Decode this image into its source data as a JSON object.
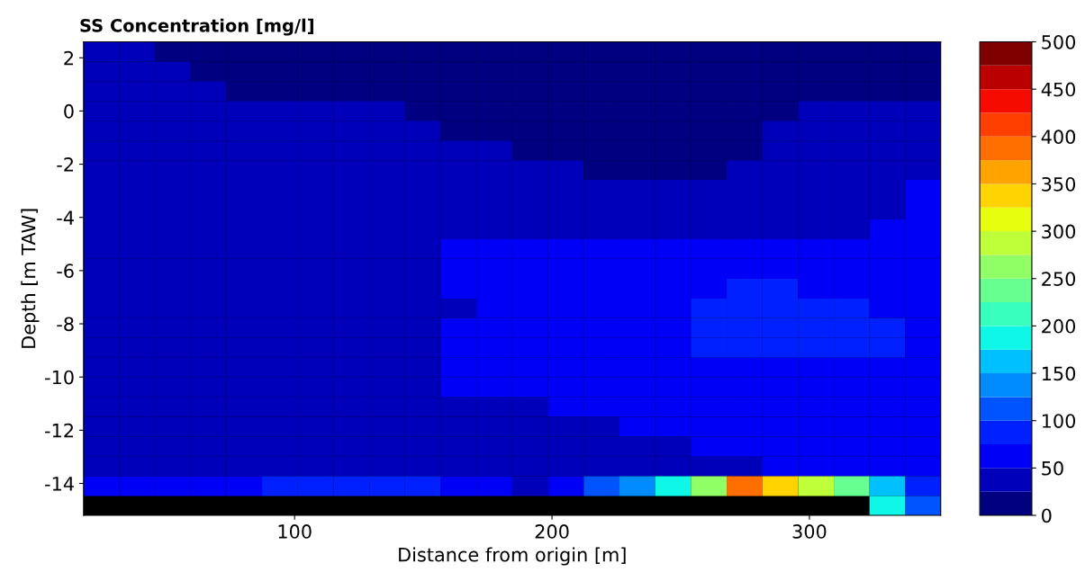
{
  "chart_data": {
    "type": "heatmap",
    "title": "SS Concentration [mg/l]",
    "xlabel": "Distance from origin [m]",
    "ylabel": "Depth [m TAW]",
    "x": [
      24.9,
      38.8,
      52.7,
      66.6,
      80.4,
      94.3,
      108.2,
      122.1,
      136.0,
      149.8,
      163.7,
      177.6,
      191.5,
      205.4,
      219.3,
      233.1,
      247.0,
      260.9,
      274.8,
      288.7,
      302.6,
      316.4,
      330.3,
      344.2
    ],
    "y": [
      2.23,
      1.49,
      0.75,
      0.0,
      -0.74,
      -1.48,
      -2.22,
      -2.96,
      -3.71,
      -4.45,
      -5.19,
      -5.93,
      -6.68,
      -7.42,
      -8.16,
      -8.9,
      -9.65,
      -10.39,
      -11.13,
      -11.87,
      -12.62,
      -13.36,
      -14.1,
      -14.84
    ],
    "xlim": [
      18,
      351
    ],
    "ylim": [
      -15.2,
      2.6
    ],
    "xticks": [
      100,
      200,
      300
    ],
    "yticks": [
      2,
      0,
      -2,
      -4,
      -6,
      -8,
      -10,
      -12,
      -14
    ],
    "clim": [
      0,
      500
    ],
    "cticks": [
      0,
      50,
      100,
      150,
      200,
      250,
      300,
      350,
      400,
      450,
      500
    ],
    "cells": [
      [
        37,
        37,
        12,
        12,
        12,
        12,
        12,
        12,
        12,
        12,
        12,
        12,
        12,
        12,
        12,
        12,
        12,
        12,
        12,
        12,
        12,
        12,
        12,
        12
      ],
      [
        37,
        37,
        37,
        12,
        12,
        12,
        12,
        12,
        12,
        12,
        12,
        12,
        12,
        12,
        12,
        12,
        12,
        12,
        12,
        12,
        12,
        12,
        12,
        12
      ],
      [
        37,
        37,
        37,
        37,
        12,
        12,
        12,
        12,
        12,
        12,
        12,
        12,
        12,
        12,
        12,
        12,
        12,
        12,
        12,
        12,
        12,
        12,
        12,
        12
      ],
      [
        37,
        37,
        37,
        37,
        37,
        37,
        37,
        37,
        37,
        12,
        12,
        12,
        12,
        12,
        12,
        12,
        12,
        12,
        12,
        12,
        37,
        37,
        37,
        37
      ],
      [
        37,
        37,
        37,
        37,
        37,
        37,
        37,
        37,
        37,
        37,
        12,
        12,
        12,
        12,
        12,
        12,
        12,
        12,
        12,
        37,
        37,
        37,
        37,
        37
      ],
      [
        37,
        37,
        37,
        37,
        37,
        37,
        37,
        37,
        37,
        37,
        37,
        37,
        12,
        12,
        12,
        12,
        12,
        12,
        12,
        37,
        37,
        37,
        37,
        37
      ],
      [
        37,
        37,
        37,
        37,
        37,
        37,
        37,
        37,
        37,
        37,
        37,
        37,
        37,
        37,
        12,
        12,
        12,
        12,
        37,
        37,
        37,
        37,
        37,
        37
      ],
      [
        37,
        37,
        37,
        37,
        37,
        37,
        37,
        37,
        37,
        37,
        37,
        37,
        37,
        37,
        37,
        37,
        37,
        37,
        37,
        37,
        37,
        37,
        37,
        62
      ],
      [
        37,
        37,
        37,
        37,
        37,
        37,
        37,
        37,
        37,
        37,
        37,
        37,
        37,
        37,
        37,
        37,
        37,
        37,
        37,
        37,
        37,
        37,
        37,
        62
      ],
      [
        37,
        37,
        37,
        37,
        37,
        37,
        37,
        37,
        37,
        37,
        37,
        37,
        37,
        37,
        37,
        37,
        37,
        37,
        37,
        37,
        37,
        37,
        62,
        62
      ],
      [
        37,
        37,
        37,
        37,
        37,
        37,
        37,
        37,
        37,
        37,
        62,
        62,
        62,
        62,
        62,
        62,
        62,
        62,
        62,
        62,
        62,
        62,
        62,
        62
      ],
      [
        37,
        37,
        37,
        37,
        37,
        37,
        37,
        37,
        37,
        37,
        62,
        62,
        62,
        62,
        62,
        62,
        62,
        62,
        62,
        62,
        62,
        62,
        62,
        62
      ],
      [
        37,
        37,
        37,
        37,
        37,
        37,
        37,
        37,
        37,
        37,
        62,
        62,
        62,
        62,
        62,
        62,
        62,
        62,
        87,
        87,
        62,
        62,
        62,
        62
      ],
      [
        37,
        37,
        37,
        37,
        37,
        37,
        37,
        37,
        37,
        37,
        37,
        62,
        62,
        62,
        62,
        62,
        62,
        87,
        87,
        87,
        87,
        87,
        62,
        62
      ],
      [
        37,
        37,
        37,
        37,
        37,
        37,
        37,
        37,
        37,
        37,
        62,
        62,
        62,
        62,
        62,
        62,
        62,
        87,
        87,
        87,
        87,
        87,
        87,
        62
      ],
      [
        37,
        37,
        37,
        37,
        37,
        37,
        37,
        37,
        37,
        37,
        62,
        62,
        62,
        62,
        62,
        62,
        62,
        87,
        87,
        87,
        87,
        87,
        87,
        62
      ],
      [
        37,
        37,
        37,
        37,
        37,
        37,
        37,
        37,
        37,
        37,
        62,
        62,
        62,
        62,
        62,
        62,
        62,
        62,
        62,
        62,
        62,
        62,
        62,
        62
      ],
      [
        37,
        37,
        37,
        37,
        37,
        37,
        37,
        37,
        37,
        37,
        62,
        62,
        62,
        62,
        62,
        62,
        62,
        62,
        62,
        62,
        62,
        62,
        62,
        62
      ],
      [
        37,
        37,
        37,
        37,
        37,
        37,
        37,
        37,
        37,
        37,
        37,
        37,
        37,
        62,
        62,
        62,
        62,
        62,
        62,
        62,
        62,
        62,
        62,
        62
      ],
      [
        37,
        37,
        37,
        37,
        37,
        37,
        37,
        37,
        37,
        37,
        37,
        37,
        37,
        37,
        37,
        62,
        62,
        62,
        62,
        62,
        62,
        62,
        62,
        62
      ],
      [
        37,
        37,
        37,
        37,
        37,
        37,
        37,
        37,
        37,
        37,
        37,
        37,
        37,
        37,
        37,
        37,
        37,
        62,
        62,
        62,
        62,
        62,
        62,
        62
      ],
      [
        37,
        37,
        37,
        37,
        37,
        37,
        37,
        37,
        37,
        37,
        37,
        37,
        37,
        37,
        37,
        37,
        37,
        37,
        37,
        62,
        62,
        62,
        62,
        62
      ],
      [
        62,
        62,
        62,
        62,
        62,
        87,
        87,
        87,
        87,
        87,
        62,
        62,
        37,
        62,
        112,
        137,
        187,
        262,
        387,
        337,
        287,
        237,
        162,
        87
      ],
      [
        null,
        null,
        null,
        null,
        null,
        null,
        null,
        null,
        null,
        null,
        null,
        null,
        null,
        null,
        null,
        null,
        null,
        null,
        null,
        null,
        null,
        null,
        180,
        120
      ]
    ]
  }
}
